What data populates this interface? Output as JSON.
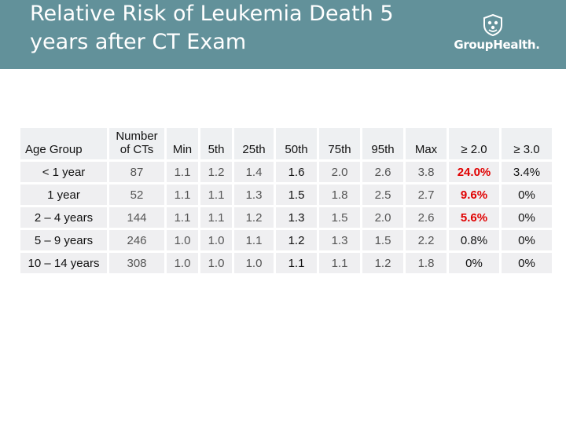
{
  "title": "Relative Risk of Leukemia Death 5 years after CT Exam",
  "logo": {
    "text": "GroupHealth.",
    "icon": "group-health-crest-icon"
  },
  "colors": {
    "header_bg": "#62919a",
    "highlight": "#e00000",
    "cell_bg": "#efeff1"
  },
  "table": {
    "headers": [
      "Age Group",
      "Number of CTs",
      "Min",
      "5th",
      "25th",
      "50th",
      "75th",
      "95th",
      "Max",
      "≥ 2.0",
      "≥ 3.0"
    ],
    "rows": [
      [
        "< 1 year",
        "87",
        "1.1",
        "1.2",
        "1.4",
        "1.6",
        "2.0",
        "2.6",
        "3.8",
        "24.0%",
        "3.4%"
      ],
      [
        "1 year",
        "52",
        "1.1",
        "1.1",
        "1.3",
        "1.5",
        "1.8",
        "2.5",
        "2.7",
        "9.6%",
        "0%"
      ],
      [
        "2 – 4 years",
        "144",
        "1.1",
        "1.1",
        "1.2",
        "1.3",
        "1.5",
        "2.0",
        "2.6",
        "5.6%",
        "0%"
      ],
      [
        "5 – 9 years",
        "246",
        "1.0",
        "1.0",
        "1.1",
        "1.2",
        "1.3",
        "1.5",
        "2.2",
        "0.8%",
        "0%"
      ],
      [
        "10 – 14 years",
        "308",
        "1.0",
        "1.0",
        "1.0",
        "1.1",
        "1.1",
        "1.2",
        "1.8",
        "0%",
        "0%"
      ]
    ]
  }
}
